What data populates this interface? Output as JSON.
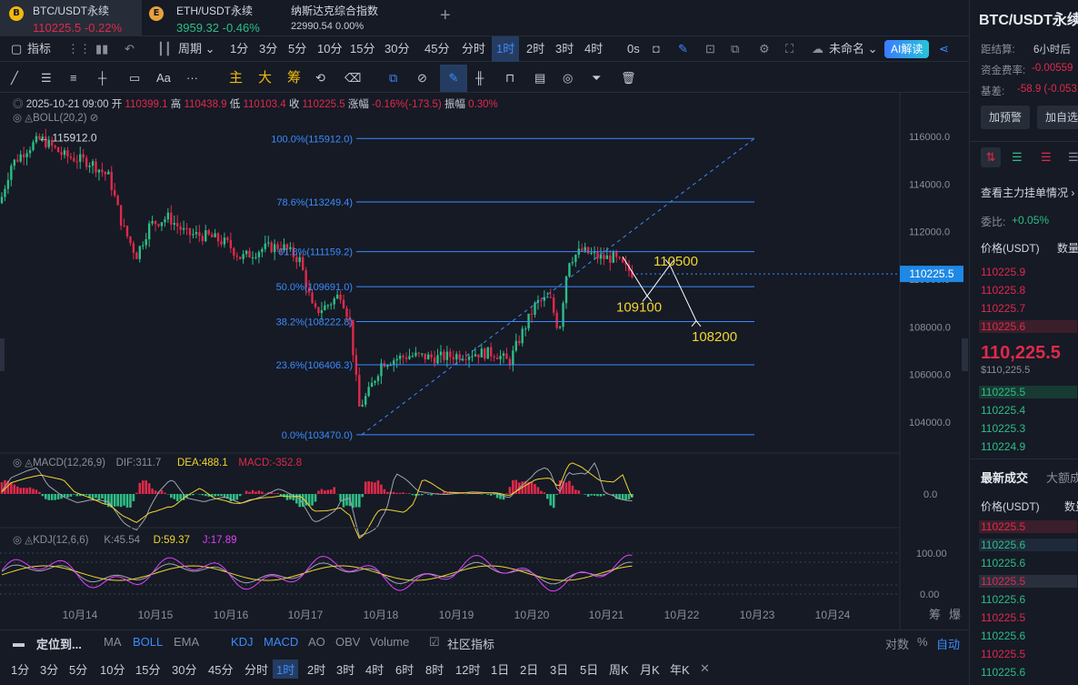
{
  "tabs": [
    {
      "title": "BTC/USDT永续",
      "price": "110225.5",
      "change": "-0.22%",
      "icon": "B"
    },
    {
      "title": "ETH/USDT永续",
      "price": "3959.32",
      "change": "-0.46%",
      "icon": "E"
    },
    {
      "title": "纳斯达克综合指数",
      "price": "22990.54",
      "change": "0.00%"
    }
  ],
  "add_tab": "+",
  "toolbar1": {
    "indicator": "指标",
    "period": "周期",
    "intervals": [
      "1分",
      "3分",
      "5分",
      "10分",
      "15分",
      "30分",
      "45分",
      "分时",
      "1时",
      "2时",
      "3时",
      "4时"
    ],
    "active": "1时",
    "zero_s": "0s",
    "layout_name": "未命名",
    "ai": "AI解读"
  },
  "toolbar2": {
    "tools_text": [
      "Aa",
      "主",
      "大",
      "筹"
    ]
  },
  "info": {
    "date": "2025-10-21 09:00",
    "open_l": "开",
    "open": "110399.1",
    "high_l": "高",
    "high": "110438.9",
    "low_l": "低",
    "low": "110103.4",
    "close_l": "收",
    "close": "110225.5",
    "chg_l": "涨幅",
    "chg": "-0.16%(-173.5)",
    "amp_l": "振幅",
    "amp": "0.30%",
    "boll": "BOLL(20,2)"
  },
  "chart_data": {
    "type": "candlestick",
    "price_axis": [
      "116000.0",
      "114000.0",
      "112000.0",
      "110000.0",
      "108000.0",
      "106000.0",
      "104000.0"
    ],
    "date_axis": [
      "10月14",
      "10月15",
      "10月16",
      "10月17",
      "10月18",
      "10月19",
      "10月20",
      "10月21",
      "10月22",
      "10月23",
      "10月24"
    ],
    "current_price": "110225.5",
    "high_marker": "115912.0",
    "fib": [
      {
        "label": "100.0%(115912.0)",
        "price": 115912.0
      },
      {
        "label": "78.6%(113249.4)",
        "price": 113249.4
      },
      {
        "label": "61.8%(111159.2)",
        "price": 111159.2
      },
      {
        "label": "50.0%(109691.0)",
        "price": 109691.0
      },
      {
        "label": "38.2%(108222.8)",
        "price": 108222.8
      },
      {
        "label": "23.6%(106406.3)",
        "price": 106406.3
      },
      {
        "label": "0.0%(103470.0)",
        "price": 103470.0
      }
    ],
    "annotations": [
      {
        "text": "110500",
        "price": 110500
      },
      {
        "text": "109100",
        "price": 109100
      },
      {
        "text": "108200",
        "price": 108200
      }
    ],
    "ylim": [
      103000,
      117000
    ],
    "macd": {
      "label": "MACD(12,26,9)",
      "dif": "DIF:311.7",
      "dea": "DEA:488.1",
      "macd": "MACD:-352.8",
      "axis": "0.0"
    },
    "kdj": {
      "label": "KDJ(12,6,6)",
      "k": "K:45.54",
      "d": "D:59.37",
      "j": "J:17.89",
      "axis": [
        "100.00",
        "0.00"
      ]
    }
  },
  "right_icons": [
    "筹",
    "爆"
  ],
  "bottom": {
    "locate": "定位到...",
    "indicators": [
      "MA",
      "BOLL",
      "EMA",
      "KDJ",
      "MACD",
      "AO",
      "OBV",
      "Volume"
    ],
    "active_ind": [
      "BOLL",
      "KDJ",
      "MACD"
    ],
    "community": "社区指标",
    "log": "对数",
    "pct": "%",
    "auto": "自动",
    "intervals": [
      "1分",
      "3分",
      "5分",
      "10分",
      "15分",
      "30分",
      "45分",
      "分时",
      "1时",
      "2时",
      "3时",
      "4时",
      "6时",
      "8时",
      "12时",
      "1日",
      "2日",
      "3日",
      "5日",
      "周K",
      "月K",
      "年K"
    ],
    "active": "1时"
  },
  "right": {
    "title": "BTC/USDT永续",
    "settle_l": "距结算:",
    "settle": "6小时后",
    "fund_l": "资金费率:",
    "fund": "-0.00559",
    "basis_l": "基差:",
    "basis": "-58.9 (-0.053",
    "alert_btn": "加预警",
    "fav_btn": "加自选",
    "depth_link": "查看主力挂单情况",
    "wb_l": "委比:",
    "wb": "+0.05%",
    "col_price": "价格(USDT)",
    "col_qty": "数量",
    "asks": [
      "110225.9",
      "110225.8",
      "110225.7",
      "110225.6"
    ],
    "last": "110,225.5",
    "last_usd": "$110,225.5",
    "bids": [
      "110225.5",
      "110225.4",
      "110225.3",
      "110224.9"
    ],
    "trades_tab": "最新成交",
    "big_tab": "大额成",
    "trades": [
      {
        "p": "110225.5",
        "c": "red"
      },
      {
        "p": "110225.6",
        "c": "green"
      },
      {
        "p": "110225.6",
        "c": "green"
      },
      {
        "p": "110225.5",
        "c": "red"
      },
      {
        "p": "110225.6",
        "c": "green"
      },
      {
        "p": "110225.5",
        "c": "red"
      },
      {
        "p": "110225.6",
        "c": "green"
      },
      {
        "p": "110225.5",
        "c": "red"
      },
      {
        "p": "110225.6",
        "c": "green"
      }
    ]
  }
}
